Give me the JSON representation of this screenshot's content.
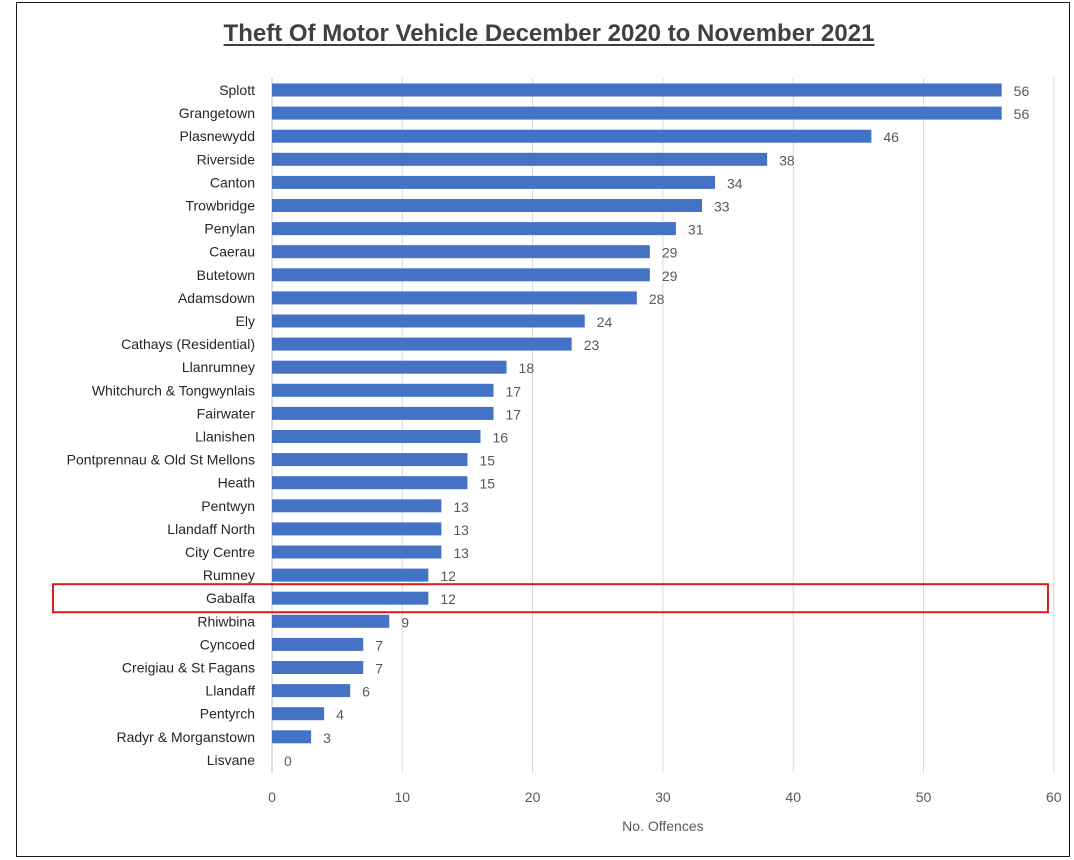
{
  "chart_data": {
    "type": "bar",
    "orientation": "horizontal",
    "title": "Theft Of Motor Vehicle December 2020 to November 2021",
    "xlabel": "No. Offences",
    "ylabel": "",
    "xlim": [
      0,
      60
    ],
    "x_ticks": [
      0,
      10,
      20,
      30,
      40,
      50,
      60
    ],
    "grid": "vertical",
    "legend": "none",
    "bar_color": "#4472C4",
    "highlight_color": "#E31A1C",
    "highlighted_category": "Gabalfa",
    "categories": [
      "Splott",
      "Grangetown",
      "Plasnewydd",
      "Riverside",
      "Canton",
      "Trowbridge",
      "Penylan",
      "Caerau",
      "Butetown",
      "Adamsdown",
      "Ely",
      "Cathays (Residential)",
      "Llanrumney",
      "Whitchurch & Tongwynlais",
      "Fairwater",
      "Llanishen",
      "Pontprennau & Old St Mellons",
      "Heath",
      "Pentwyn",
      "Llandaff North",
      "City Centre",
      "Rumney",
      "Gabalfa",
      "Rhiwbina",
      "Cyncoed",
      "Creigiau & St Fagans",
      "Llandaff",
      "Pentyrch",
      "Radyr & Morganstown",
      "Lisvane"
    ],
    "values": [
      56,
      56,
      46,
      38,
      34,
      33,
      31,
      29,
      29,
      28,
      24,
      23,
      18,
      17,
      17,
      16,
      15,
      15,
      13,
      13,
      13,
      12,
      12,
      9,
      7,
      7,
      6,
      4,
      3,
      0
    ]
  }
}
